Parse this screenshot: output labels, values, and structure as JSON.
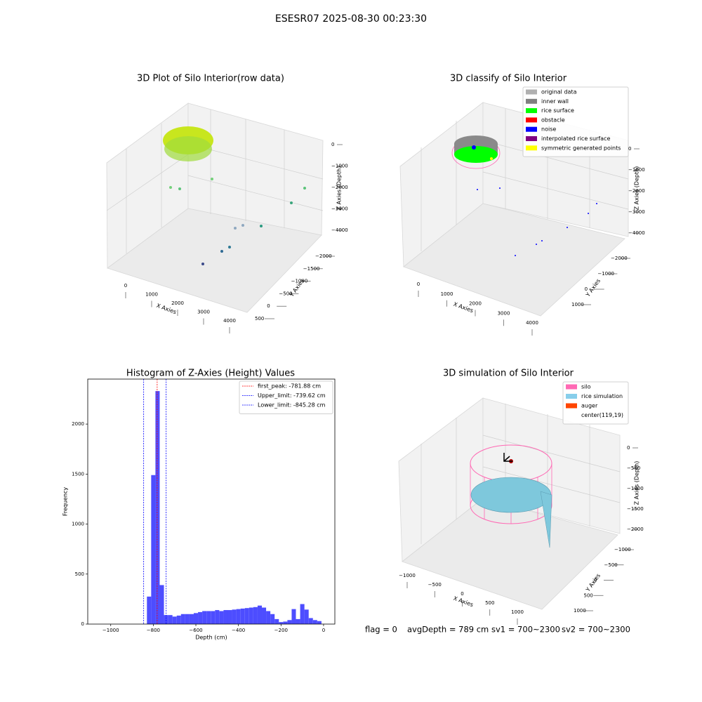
{
  "title": "ESESR07 2025-08-30 00:23:30",
  "chart_data": [
    {
      "type": "scatter3d",
      "title": "3D Plot of Silo Interior(row data)",
      "xlabel": "X Axies",
      "ylabel": "Y Axies",
      "zlabel": "Z Axies (Depth)",
      "xticks": [
        0,
        1000,
        2000,
        3000,
        4000
      ],
      "yticks": [
        {
          "value": -2000,
          "label": "−2000"
        },
        {
          "value": -1500,
          "label": "−1500"
        },
        {
          "value": -1000,
          "label": "−1000"
        },
        {
          "value": -500,
          "label": "−500"
        },
        0,
        500
      ],
      "zticks": [
        0,
        {
          "value": -1000,
          "label": "−1000"
        },
        {
          "value": -2000,
          "label": "−2000"
        },
        {
          "value": -3000,
          "label": "−3000"
        },
        {
          "value": -4000,
          "label": "−4000"
        }
      ]
    },
    {
      "type": "scatter3d",
      "title": "3D classify of Silo Interior",
      "xlabel": "X Axies",
      "ylabel": "Y Axies",
      "zlabel": "Z Axies (Depth)",
      "xticks": [
        0,
        1000,
        2000,
        3000,
        4000
      ],
      "yticks": [
        {
          "value": -2000,
          "label": "−2000"
        },
        {
          "value": -1000,
          "label": "−1000"
        },
        0,
        1000
      ],
      "zticks": [
        0,
        {
          "value": -1000,
          "label": "−1000"
        },
        {
          "value": -2000,
          "label": "−2000"
        },
        {
          "value": -3000,
          "label": "−3000"
        },
        {
          "value": -4000,
          "label": "−4000"
        }
      ],
      "legend": [
        {
          "name": "original data",
          "color": "#b0b0b0"
        },
        {
          "name": "inner wall",
          "color": "#808080"
        },
        {
          "name": "rice surface",
          "color": "#00ff00"
        },
        {
          "name": "obstacle",
          "color": "#ff0000"
        },
        {
          "name": "noise",
          "color": "#0000ff"
        },
        {
          "name": "interpolated rice surface",
          "color": "#800080"
        },
        {
          "name": "symmetric generated points",
          "color": "#ffff00"
        }
      ]
    },
    {
      "type": "histogram",
      "title": "Histogram of Z-Axies (Height) Values",
      "xlabel": "Depth (cm)",
      "ylabel": "Frequency",
      "color": "#4d4dff",
      "bins": [
        -830,
        -810,
        -790,
        -770,
        -750,
        -730,
        -710,
        -690,
        -670,
        -650,
        -630,
        -610,
        -590,
        -570,
        -550,
        -530,
        -510,
        -490,
        -470,
        -450,
        -430,
        -410,
        -390,
        -370,
        -350,
        -330,
        -310,
        -290,
        -270,
        -250,
        -230,
        -210,
        -190,
        -170,
        -150,
        -130,
        -110,
        -90,
        -70,
        -50,
        -30,
        -10
      ],
      "values": [
        275,
        1490,
        2330,
        390,
        90,
        90,
        75,
        85,
        100,
        100,
        100,
        110,
        120,
        130,
        130,
        130,
        140,
        130,
        140,
        140,
        145,
        150,
        155,
        160,
        165,
        170,
        185,
        165,
        130,
        100,
        50,
        20,
        25,
        40,
        150,
        50,
        200,
        145,
        60,
        40,
        30
      ],
      "xlim": [
        -1108,
        53
      ],
      "ylim": [
        0,
        2450
      ],
      "xticks": [
        {
          "value": -1000,
          "label": "−1000"
        },
        {
          "value": -800,
          "label": "−800"
        },
        {
          "value": -600,
          "label": "−600"
        },
        {
          "value": -400,
          "label": "−400"
        },
        {
          "value": -200,
          "label": "−200"
        },
        0
      ],
      "yticks": [
        0,
        500,
        1000,
        1500,
        2000
      ],
      "vlines": [
        {
          "name": "first_peak: -781.88 cm",
          "value": -781.88,
          "color": "#ff0000"
        },
        {
          "name": "Upper_limit: -739.62 cm",
          "value": -739.62,
          "color": "#0000ff"
        },
        {
          "name": "Lower_limit: -845.28 cm",
          "value": -845.28,
          "color": "#0000ff"
        }
      ]
    },
    {
      "type": "surface3d",
      "title": "3D simulation of Silo Interior",
      "xlabel": "X Axies",
      "ylabel": "Y Axies",
      "zlabel": "Z Axies (Depth)",
      "xticks": [
        {
          "value": -1000,
          "label": "−1000"
        },
        {
          "value": -500,
          "label": "−500"
        },
        0,
        500,
        1000
      ],
      "yticks": [
        {
          "value": -1000,
          "label": "−1000"
        },
        {
          "value": -500,
          "label": "−500"
        },
        0,
        500,
        1000
      ],
      "zticks": [
        0,
        {
          "value": -500,
          "label": "−500"
        },
        {
          "value": -1000,
          "label": "−1000"
        },
        {
          "value": -1500,
          "label": "−1500"
        },
        {
          "value": -2000,
          "label": "−2000"
        }
      ],
      "legend": [
        {
          "name": "silo",
          "color": "#ff69b4"
        },
        {
          "name": "rice simulation",
          "color": "#87ceeb"
        },
        {
          "name": "auger",
          "color": "#ff4500"
        },
        {
          "name": "center(119,19)",
          "color": "#ffffff"
        }
      ]
    }
  ],
  "footer": {
    "flag": "flag = 0",
    "avgDepth": "avgDepth = 789 cm",
    "sv1": "sv1 = 700~2300",
    "sv2": "sv2 = 700~2300"
  }
}
